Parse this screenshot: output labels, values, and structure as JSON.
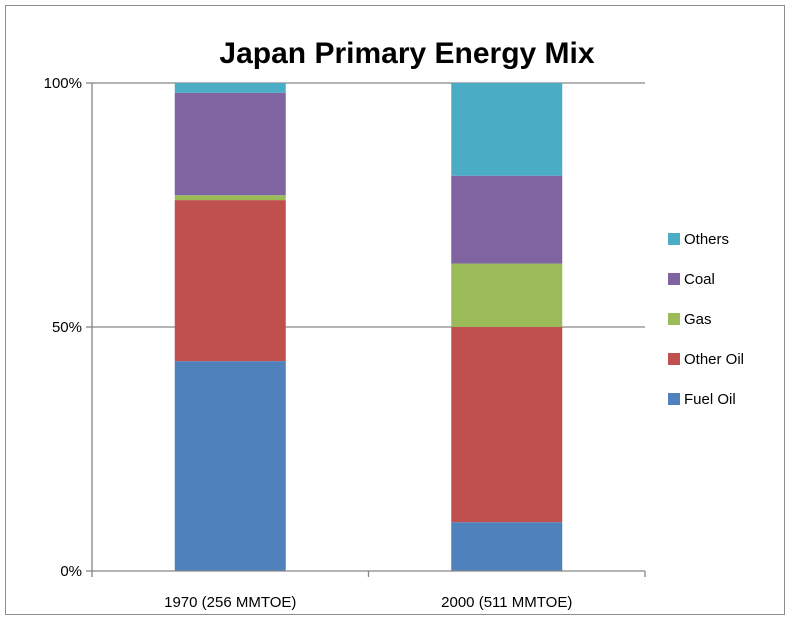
{
  "chart_data": {
    "type": "bar",
    "stacked": true,
    "percent": true,
    "title": "Japan Primary Energy Mix",
    "xlabel": "",
    "ylabel": "",
    "categories": [
      "1970 (256 MMTOE)",
      "2000 (511 MMTOE)"
    ],
    "y_ticks": [
      "0%",
      "50%",
      "100%"
    ],
    "ylim": [
      0,
      100
    ],
    "grid": true,
    "legend_position": "right",
    "series": [
      {
        "name": "Fuel Oil",
        "color": "#4F81BD",
        "values": [
          43,
          10
        ]
      },
      {
        "name": "Other Oil",
        "color": "#C0504D",
        "values": [
          33,
          40
        ]
      },
      {
        "name": "Gas",
        "color": "#9BBB59",
        "values": [
          1,
          13
        ]
      },
      {
        "name": "Coal",
        "color": "#8064A2",
        "values": [
          21,
          18
        ]
      },
      {
        "name": "Others",
        "color": "#4BACC6",
        "values": [
          2,
          19
        ]
      }
    ]
  }
}
